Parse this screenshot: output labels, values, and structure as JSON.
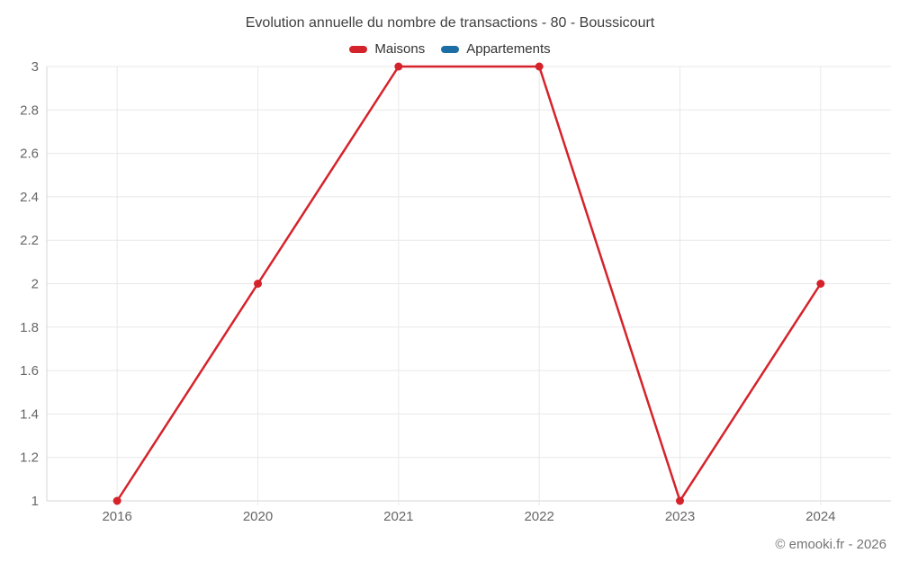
{
  "title": "Evolution annuelle du nombre de transactions - 80 - Boussicourt",
  "footer": "© emooki.fr - 2026",
  "legend": {
    "items": [
      {
        "label": "Maisons",
        "color": "#d5232b"
      },
      {
        "label": "Appartements",
        "color": "#1c6ea4"
      }
    ]
  },
  "colors": {
    "background": "#ffffff",
    "grid": "#e8e8e8",
    "axis": "#d6d6d6",
    "title_text": "#3f3f3f",
    "legend_text": "#333333",
    "tick_text": "#666666",
    "footer_text": "#757575"
  },
  "chart_data": {
    "type": "line",
    "categories": [
      "2016",
      "2020",
      "2021",
      "2022",
      "2023",
      "2024"
    ],
    "series": [
      {
        "name": "Maisons",
        "color": "#d5232b",
        "values": [
          1,
          2,
          3,
          3,
          1,
          2
        ]
      },
      {
        "name": "Appartements",
        "color": "#1c6ea4",
        "values": []
      }
    ],
    "title": "Evolution annuelle du nombre de transactions - 80 - Boussicourt",
    "xlabel": "",
    "ylabel": "",
    "ylim": [
      1,
      3
    ],
    "yticks": [
      "1",
      "1.2",
      "1.4",
      "1.6",
      "1.8",
      "2",
      "2.2",
      "2.4",
      "2.6",
      "2.8",
      "3"
    ],
    "grid": true,
    "legend_position": "top",
    "marker": "circle",
    "marker_radius": 4.5,
    "line_width": 2.5
  }
}
